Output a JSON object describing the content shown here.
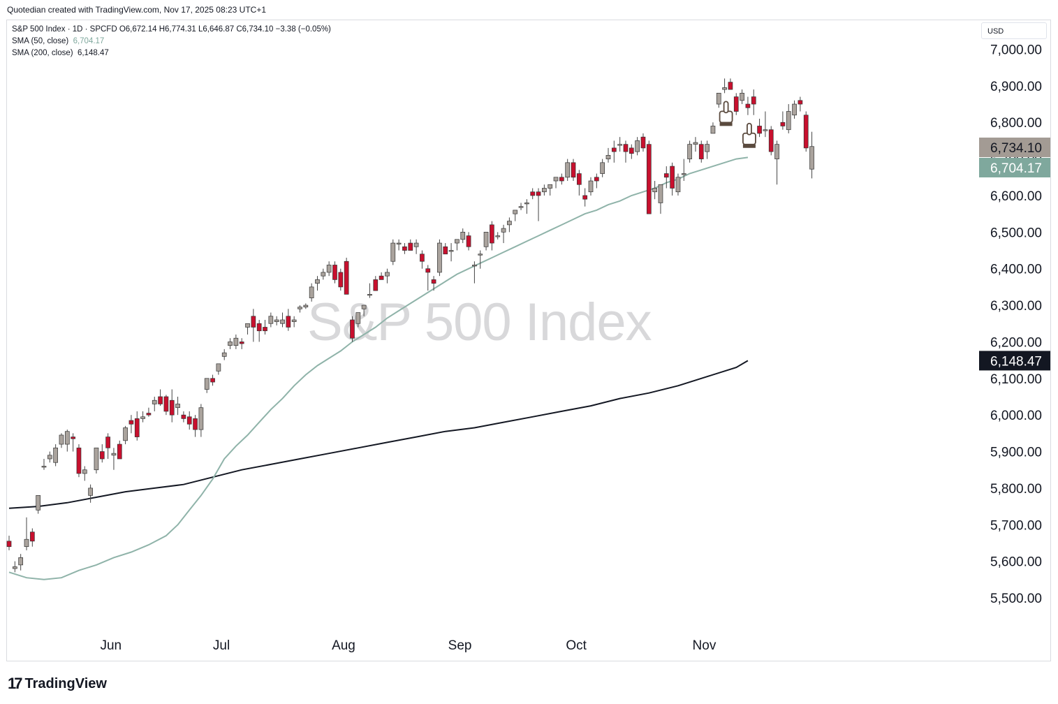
{
  "header": {
    "credit": "Quotedian created with TradingView.com, Nov 17, 2025 08:23 UTC+1"
  },
  "legend": {
    "line1": "S&P 500 Index · 1D · SPCFD  O6,672.14  H6,774.31  L6,646.87  C6,734.10  −3.38 (−0.05%)",
    "sma50_label": "SMA (50, close)",
    "sma50_value": "6,704.17",
    "sma200_label": "SMA (200, close)",
    "sma200_value": "6,148.47"
  },
  "watermark": "S&P 500 Index",
  "currency": "USD",
  "brand": {
    "logo_mark": "17",
    "logo_text": "TradingView"
  },
  "colors": {
    "up": "#aaa39d",
    "down": "#c8102e",
    "sma50": "#8fb3a9",
    "sma200": "#131722",
    "last_price_bg": "#a39b94",
    "sma50_tag_bg": "#7fa89d",
    "sma200_tag_bg": "#131722"
  },
  "chart_data": {
    "type": "candlestick",
    "title": "S&P 500 Index",
    "ylim": [
      5400,
      7080
    ],
    "y_ticks": [
      "5,500.00",
      "5,600.00",
      "5,700.00",
      "5,800.00",
      "5,900.00",
      "6,000.00",
      "6,100.00",
      "6,200.00",
      "6,300.00",
      "6,400.00",
      "6,500.00",
      "6,600.00",
      "6,700.00",
      "6,800.00",
      "6,900.00",
      "7,000.00"
    ],
    "y_tick_values": [
      5500,
      5600,
      5700,
      5800,
      5900,
      6000,
      6100,
      6200,
      6300,
      6400,
      6500,
      6600,
      6700,
      6800,
      6900,
      7000
    ],
    "x_labels": [
      "Jun",
      "Jul",
      "Aug",
      "Sep",
      "Oct",
      "Nov"
    ],
    "x_label_index": [
      17.5,
      36.5,
      57.5,
      77.5,
      97.5,
      119.5
    ],
    "price_tags": [
      {
        "label": "6,734.10",
        "value": 6734.1,
        "role": "last"
      },
      {
        "label": "6,704.17",
        "value": 6704.17,
        "role": "sma50"
      },
      {
        "label": "6,148.47",
        "value": 6148.47,
        "role": "sma200"
      }
    ],
    "candles": [
      [
        5655,
        5670,
        5630,
        5640
      ],
      [
        5580,
        5600,
        5570,
        5585
      ],
      [
        5590,
        5620,
        5575,
        5610
      ],
      [
        5640,
        5720,
        5630,
        5660
      ],
      [
        5680,
        5690,
        5640,
        5655
      ],
      [
        5740,
        5780,
        5730,
        5780
      ],
      [
        5860,
        5880,
        5850,
        5860
      ],
      [
        5880,
        5900,
        5870,
        5890
      ],
      [
        5870,
        5920,
        5860,
        5910
      ],
      [
        5920,
        5950,
        5910,
        5945
      ],
      [
        5920,
        5960,
        5900,
        5955
      ],
      [
        5940,
        5950,
        5900,
        5935
      ],
      [
        5910,
        5920,
        5830,
        5840
      ],
      [
        5840,
        5860,
        5820,
        5850
      ],
      [
        5780,
        5810,
        5760,
        5800
      ],
      [
        5850,
        5910,
        5840,
        5910
      ],
      [
        5900,
        5920,
        5870,
        5880
      ],
      [
        5940,
        5950,
        5880,
        5910
      ],
      [
        5890,
        5910,
        5850,
        5895
      ],
      [
        5920,
        5930,
        5880,
        5880
      ],
      [
        5930,
        5970,
        5920,
        5965
      ],
      [
        5985,
        6000,
        5950,
        5975
      ],
      [
        5990,
        6010,
        5930,
        5940
      ],
      [
        5990,
        6010,
        5980,
        5995
      ],
      [
        6005,
        6020,
        5995,
        6000
      ],
      [
        6030,
        6050,
        6010,
        6040
      ],
      [
        6050,
        6070,
        6025,
        6030
      ],
      [
        6050,
        6055,
        6000,
        6010
      ],
      [
        6040,
        6070,
        5980,
        6000
      ],
      [
        6020,
        6050,
        6000,
        6030
      ],
      [
        6000,
        6010,
        5980,
        5990
      ],
      [
        5995,
        6010,
        5960,
        5975
      ],
      [
        5990,
        6000,
        5940,
        5960
      ],
      [
        5960,
        6030,
        5940,
        6020
      ],
      [
        6070,
        6100,
        6060,
        6100
      ],
      [
        6100,
        6110,
        6080,
        6090
      ],
      [
        6120,
        6140,
        6110,
        6140
      ],
      [
        6160,
        6180,
        6150,
        6170
      ],
      [
        6190,
        6210,
        6180,
        6200
      ],
      [
        6190,
        6220,
        6180,
        6210
      ],
      [
        6200,
        6210,
        6180,
        6195
      ],
      [
        6240,
        6250,
        6220,
        6250
      ],
      [
        6270,
        6290,
        6200,
        6240
      ],
      [
        6250,
        6260,
        6200,
        6230
      ],
      [
        6240,
        6260,
        6220,
        6230
      ],
      [
        6250,
        6280,
        6240,
        6270
      ],
      [
        6255,
        6270,
        6245,
        6260
      ],
      [
        6250,
        6280,
        6240,
        6260
      ],
      [
        6270,
        6290,
        6230,
        6240
      ],
      [
        6255,
        6270,
        6240,
        6260
      ],
      [
        6290,
        6300,
        6280,
        6295
      ],
      [
        6295,
        6305,
        6290,
        6300
      ],
      [
        6320,
        6360,
        6310,
        6350
      ],
      [
        6360,
        6380,
        6340,
        6370
      ],
      [
        6380,
        6400,
        6370,
        6390
      ],
      [
        6390,
        6420,
        6380,
        6410
      ],
      [
        6410,
        6420,
        6360,
        6370
      ],
      [
        6390,
        6400,
        6340,
        6350
      ],
      [
        6420,
        6430,
        6330,
        6330
      ],
      [
        6260,
        6270,
        6200,
        6210
      ],
      [
        6250,
        6280,
        6240,
        6280
      ],
      [
        6290,
        6300,
        6270,
        6300
      ],
      [
        6330,
        6360,
        6320,
        6330
      ],
      [
        6370,
        6380,
        6340,
        6340
      ],
      [
        6380,
        6390,
        6370,
        6370
      ],
      [
        6380,
        6400,
        6360,
        6390
      ],
      [
        6420,
        6480,
        6410,
        6470
      ],
      [
        6470,
        6480,
        6450,
        6470
      ],
      [
        6460,
        6470,
        6440,
        6450
      ],
      [
        6470,
        6480,
        6450,
        6450
      ],
      [
        6460,
        6480,
        6440,
        6470
      ],
      [
        6440,
        6450,
        6400,
        6420
      ],
      [
        6400,
        6410,
        6340,
        6390
      ],
      [
        6370,
        6380,
        6340,
        6360
      ],
      [
        6390,
        6480,
        6380,
        6470
      ],
      [
        6460,
        6470,
        6440,
        6440
      ],
      [
        6450,
        6470,
        6420,
        6450
      ],
      [
        6470,
        6480,
        6450,
        6480
      ],
      [
        6480,
        6510,
        6470,
        6500
      ],
      [
        6490,
        6500,
        6450,
        6460
      ],
      [
        6410,
        6420,
        6360,
        6410
      ],
      [
        6440,
        6450,
        6400,
        6440
      ],
      [
        6460,
        6500,
        6450,
        6500
      ],
      [
        6520,
        6530,
        6450,
        6470
      ],
      [
        6490,
        6500,
        6480,
        6490
      ],
      [
        6500,
        6520,
        6470,
        6510
      ],
      [
        6520,
        6540,
        6500,
        6530
      ],
      [
        6550,
        6560,
        6530,
        6560
      ],
      [
        6570,
        6580,
        6560,
        6570
      ],
      [
        6580,
        6590,
        6550,
        6580
      ],
      [
        6610,
        6620,
        6590,
        6600
      ],
      [
        6610,
        6620,
        6530,
        6600
      ],
      [
        6610,
        6630,
        6600,
        6620
      ],
      [
        6620,
        6630,
        6600,
        6630
      ],
      [
        6640,
        6650,
        6620,
        6650
      ],
      [
        6650,
        6660,
        6630,
        6640
      ],
      [
        6650,
        6700,
        6640,
        6690
      ],
      [
        6690,
        6700,
        6640,
        6650
      ],
      [
        6660,
        6670,
        6600,
        6630
      ],
      [
        6600,
        6620,
        6570,
        6590
      ],
      [
        6610,
        6650,
        6600,
        6640
      ],
      [
        6650,
        6660,
        6620,
        6640
      ],
      [
        6660,
        6700,
        6650,
        6690
      ],
      [
        6700,
        6730,
        6690,
        6710
      ],
      [
        6730,
        6750,
        6690,
        6720
      ],
      [
        6740,
        6760,
        6720,
        6740
      ],
      [
        6740,
        6750,
        6690,
        6720
      ],
      [
        6730,
        6740,
        6700,
        6715
      ],
      [
        6720,
        6760,
        6710,
        6750
      ],
      [
        6760,
        6770,
        6720,
        6730
      ],
      [
        6740,
        6750,
        6550,
        6550
      ],
      [
        6610,
        6640,
        6590,
        6620
      ],
      [
        6580,
        6630,
        6550,
        6630
      ],
      [
        6660,
        6680,
        6620,
        6650
      ],
      [
        6680,
        6690,
        6600,
        6620
      ],
      [
        6610,
        6660,
        6600,
        6650
      ],
      [
        6660,
        6700,
        6640,
        6660
      ],
      [
        6700,
        6750,
        6690,
        6740
      ],
      [
        6740,
        6760,
        6720,
        6745
      ],
      [
        6740,
        6750,
        6690,
        6700
      ],
      [
        6720,
        6750,
        6700,
        6740
      ],
      [
        6770,
        6800,
        6770,
        6790
      ],
      [
        6850,
        6880,
        6840,
        6880
      ],
      [
        6890,
        6920,
        6880,
        6895
      ],
      [
        6910,
        6920,
        6890,
        6890
      ],
      [
        6870,
        6880,
        6820,
        6830
      ],
      [
        6860,
        6890,
        6850,
        6880
      ],
      [
        6850,
        6870,
        6820,
        6840
      ],
      [
        6870,
        6890,
        6820,
        6850
      ],
      [
        6790,
        6810,
        6760,
        6770
      ],
      [
        6780,
        6830,
        6760,
        6780
      ],
      [
        6780,
        6790,
        6710,
        6720
      ],
      [
        6700,
        6750,
        6630,
        6740
      ],
      [
        6800,
        6830,
        6780,
        6790
      ],
      [
        6780,
        6850,
        6770,
        6830
      ],
      [
        6820,
        6860,
        6810,
        6850
      ],
      [
        6860,
        6870,
        6830,
        6850
      ],
      [
        6820,
        6830,
        6720,
        6730
      ],
      [
        6672.14,
        6774.31,
        6646.87,
        6734.1
      ]
    ],
    "sma50": [
      [
        0,
        5570
      ],
      [
        3,
        5555
      ],
      [
        6,
        5550
      ],
      [
        9,
        5555
      ],
      [
        12,
        5575
      ],
      [
        15,
        5590
      ],
      [
        18,
        5610
      ],
      [
        21,
        5625
      ],
      [
        24,
        5645
      ],
      [
        27,
        5670
      ],
      [
        29,
        5700
      ],
      [
        31,
        5740
      ],
      [
        33,
        5780
      ],
      [
        35,
        5825
      ],
      [
        37,
        5880
      ],
      [
        39,
        5915
      ],
      [
        41,
        5945
      ],
      [
        43,
        5980
      ],
      [
        45,
        6015
      ],
      [
        47,
        6045
      ],
      [
        49,
        6080
      ],
      [
        51,
        6110
      ],
      [
        53,
        6135
      ],
      [
        55,
        6155
      ],
      [
        57,
        6175
      ],
      [
        59,
        6200
      ],
      [
        61,
        6220
      ],
      [
        63,
        6240
      ],
      [
        65,
        6265
      ],
      [
        67,
        6285
      ],
      [
        69,
        6305
      ],
      [
        71,
        6325
      ],
      [
        73,
        6345
      ],
      [
        75,
        6365
      ],
      [
        77,
        6385
      ],
      [
        79,
        6400
      ],
      [
        81,
        6415
      ],
      [
        83,
        6430
      ],
      [
        85,
        6445
      ],
      [
        87,
        6460
      ],
      [
        89,
        6475
      ],
      [
        91,
        6490
      ],
      [
        93,
        6505
      ],
      [
        95,
        6520
      ],
      [
        97,
        6535
      ],
      [
        99,
        6550
      ],
      [
        101,
        6560
      ],
      [
        103,
        6575
      ],
      [
        105,
        6585
      ],
      [
        107,
        6600
      ],
      [
        109,
        6610
      ],
      [
        111,
        6620
      ],
      [
        113,
        6635
      ],
      [
        115,
        6645
      ],
      [
        117,
        6660
      ],
      [
        119,
        6670
      ],
      [
        121,
        6680
      ],
      [
        123,
        6690
      ],
      [
        125,
        6700
      ],
      [
        127,
        6704.17
      ]
    ],
    "sma200": [
      [
        0,
        5745
      ],
      [
        5,
        5750
      ],
      [
        10,
        5760
      ],
      [
        15,
        5775
      ],
      [
        20,
        5790
      ],
      [
        25,
        5800
      ],
      [
        30,
        5810
      ],
      [
        35,
        5830
      ],
      [
        40,
        5850
      ],
      [
        45,
        5865
      ],
      [
        50,
        5880
      ],
      [
        55,
        5895
      ],
      [
        60,
        5910
      ],
      [
        65,
        5925
      ],
      [
        70,
        5940
      ],
      [
        75,
        5955
      ],
      [
        80,
        5965
      ],
      [
        85,
        5980
      ],
      [
        90,
        5995
      ],
      [
        95,
        6010
      ],
      [
        100,
        6025
      ],
      [
        105,
        6045
      ],
      [
        110,
        6060
      ],
      [
        115,
        6080
      ],
      [
        120,
        6105
      ],
      [
        125,
        6130
      ],
      [
        127,
        6148.47
      ]
    ],
    "markers": [
      {
        "index": 123,
        "type": "hand-pointer"
      },
      {
        "index": 127,
        "type": "hand-pointer"
      }
    ]
  }
}
